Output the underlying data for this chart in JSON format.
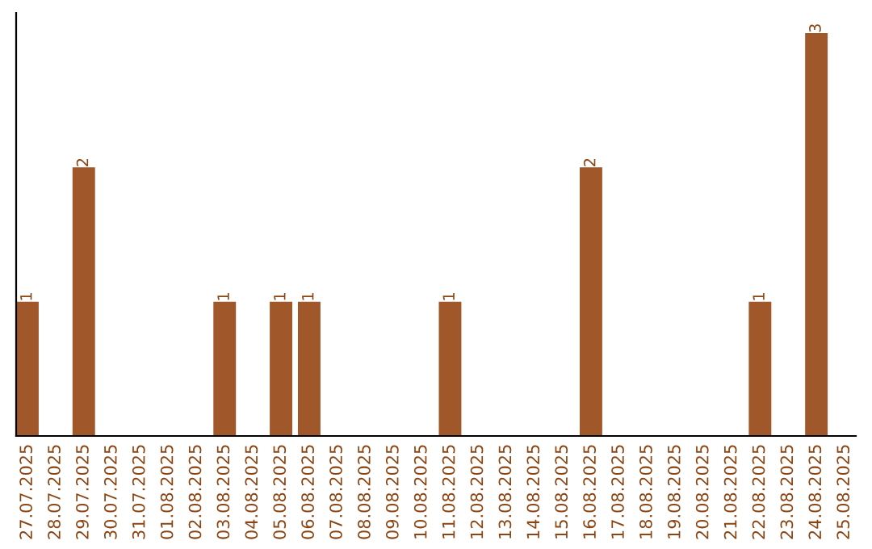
{
  "chart_data": {
    "type": "bar",
    "categories": [
      "27.07.2025",
      "28.07.2025",
      "29.07.2025",
      "30.07.2025",
      "31.07.2025",
      "01.08.2025",
      "02.08.2025",
      "03.08.2025",
      "04.08.2025",
      "05.08.2025",
      "06.08.2025",
      "07.08.2025",
      "08.08.2025",
      "09.08.2025",
      "10.08.2025",
      "11.08.2025",
      "12.08.2025",
      "13.08.2025",
      "14.08.2025",
      "15.08.2025",
      "16.08.2025",
      "17.08.2025",
      "18.08.2025",
      "19.08.2025",
      "20.08.2025",
      "21.08.2025",
      "22.08.2025",
      "23.08.2025",
      "24.08.2025",
      "25.08.2025"
    ],
    "values": [
      1,
      0,
      2,
      0,
      0,
      0,
      0,
      1,
      0,
      1,
      1,
      0,
      0,
      0,
      0,
      1,
      0,
      0,
      0,
      0,
      2,
      0,
      0,
      0,
      0,
      0,
      1,
      0,
      3,
      0
    ],
    "value_labels": [
      "1",
      null,
      "2",
      null,
      null,
      null,
      null,
      "1",
      null,
      "1",
      "1",
      null,
      null,
      null,
      null,
      "1",
      null,
      null,
      null,
      null,
      "2",
      null,
      null,
      null,
      null,
      null,
      "1",
      null,
      "3",
      null
    ],
    "color": "#a0582a",
    "tick_labels": "x",
    "grid": false,
    "legend": false
  }
}
